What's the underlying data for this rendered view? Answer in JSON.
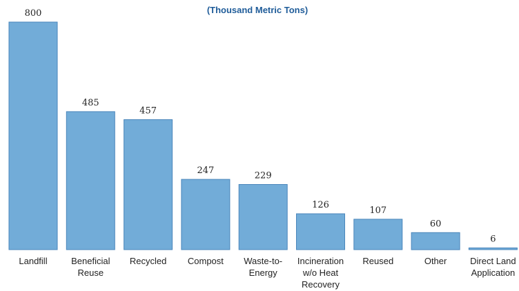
{
  "chart_data": {
    "type": "bar",
    "subtitle": "(Thousand Metric Tons)",
    "categories": [
      [
        "Landfill"
      ],
      [
        "Beneficial",
        "Reuse"
      ],
      [
        "Recycled"
      ],
      [
        "Compost"
      ],
      [
        "Waste-to-",
        "Energy"
      ],
      [
        "Incineration",
        "w/o Heat",
        "Recovery"
      ],
      [
        "Reused"
      ],
      [
        "Other"
      ],
      [
        "Direct Land",
        "Application"
      ]
    ],
    "values": [
      800,
      485,
      457,
      247,
      229,
      126,
      107,
      60,
      6
    ],
    "value_labels": [
      "800",
      "485",
      "457",
      "247",
      "229",
      "126",
      "107",
      "60",
      "6"
    ],
    "ylim": [
      0,
      800
    ],
    "grid": false,
    "legend": "none",
    "bar_color": "#72acd8",
    "bar_edge_color": "#4a86bb"
  }
}
